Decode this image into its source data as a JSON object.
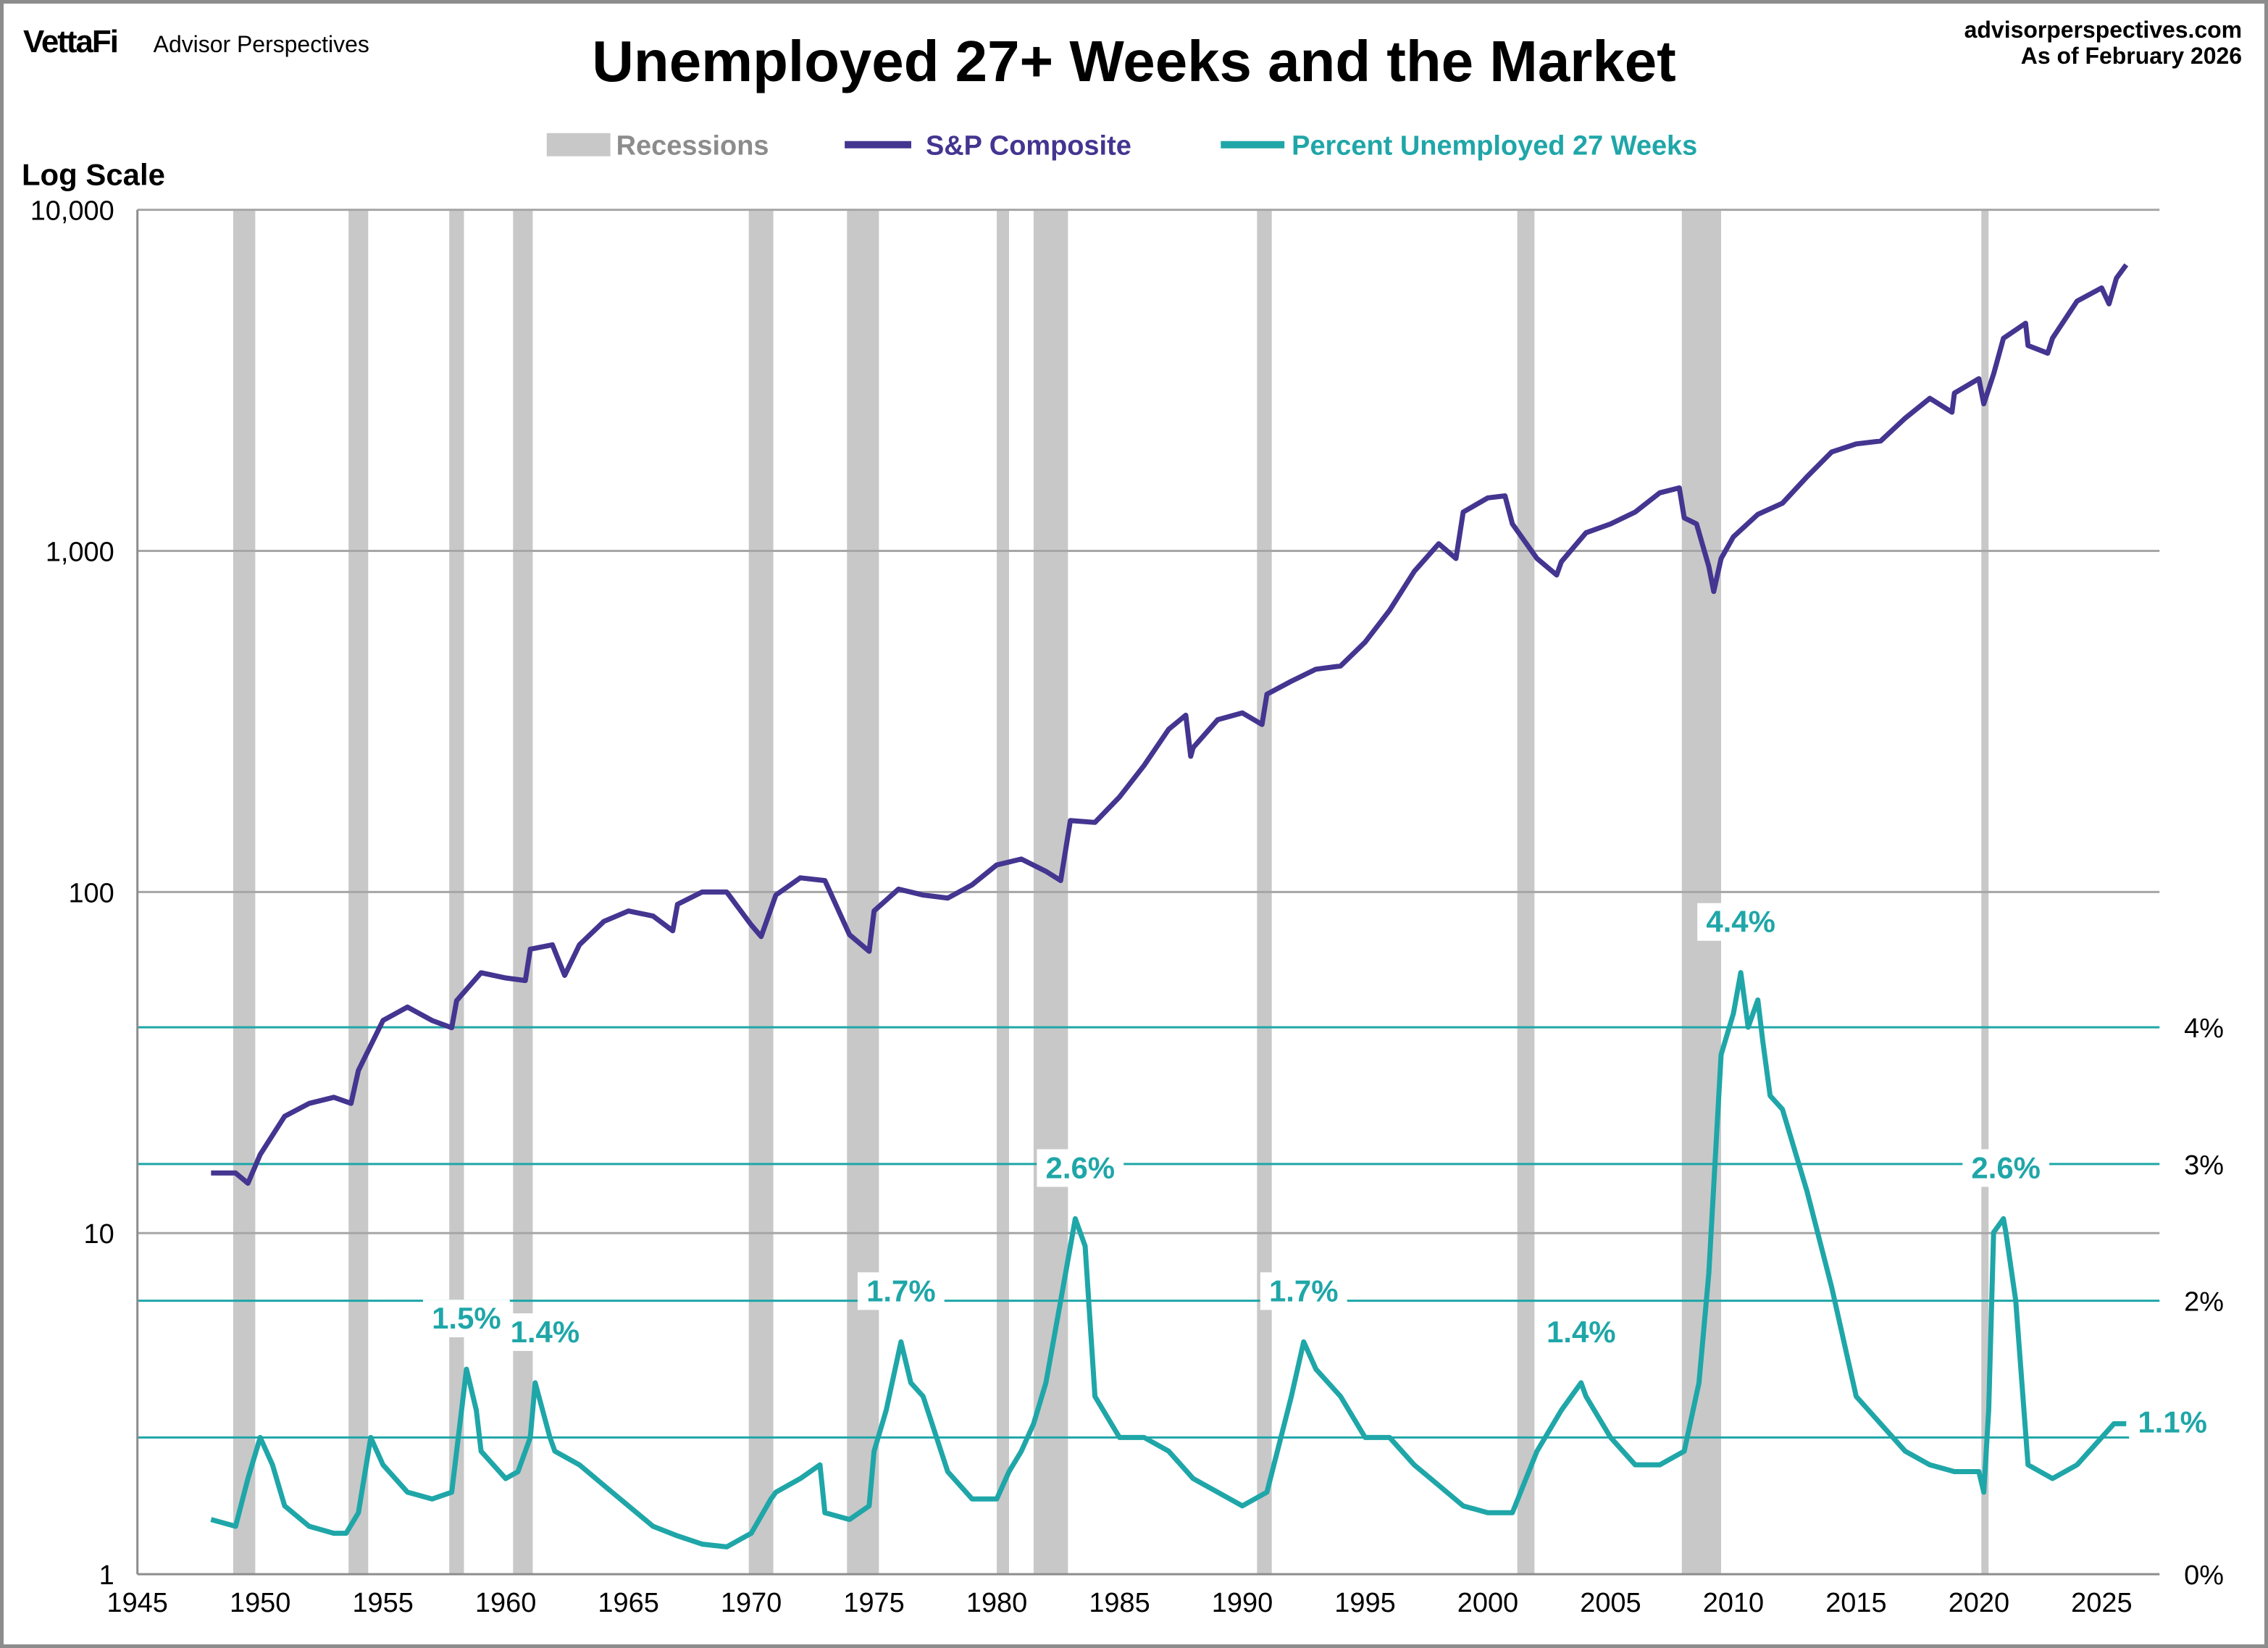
{
  "header": {
    "brand": "VettaFi",
    "brand_sub": "Advisor Perspectives",
    "site": "advisorperspectives.com",
    "as_of": "As of February 2026"
  },
  "chart_data": {
    "type": "line",
    "title": "Unemployed 27+ Weeks and the Market",
    "left_axis_label": "Log Scale",
    "left_axis": {
      "scale": "log",
      "range": [
        1,
        10000
      ],
      "ticks": [
        "1",
        "10",
        "100",
        "1,000",
        "10,000"
      ]
    },
    "right_axis": {
      "range": [
        0,
        5
      ],
      "ticks": [
        "0%",
        "2%",
        "3%",
        "4%"
      ],
      "gridlines_at": [
        1,
        2,
        3,
        4
      ]
    },
    "x_axis": {
      "range": [
        1945,
        2027
      ],
      "ticks": [
        "1945",
        "1950",
        "1955",
        "1960",
        "1965",
        "1970",
        "1975",
        "1980",
        "1985",
        "1990",
        "1995",
        "2000",
        "2005",
        "2010",
        "2015",
        "2020",
        "2025"
      ]
    },
    "legend": {
      "position": "top",
      "items": [
        "Recessions",
        "S&P Composite",
        "Percent Unemployed 27 Weeks"
      ]
    },
    "colors": {
      "recession": "#c8c8c8",
      "sp": "#433590",
      "unemp": "#1fa6a8",
      "grid": "#a6a6a6"
    },
    "recessions": [
      [
        1948.9,
        1949.8
      ],
      [
        1953.6,
        1954.4
      ],
      [
        1957.7,
        1958.3
      ],
      [
        1960.3,
        1961.1
      ],
      [
        1969.9,
        1970.9
      ],
      [
        1973.9,
        1975.2
      ],
      [
        1980.0,
        1980.5
      ],
      [
        1981.5,
        1982.9
      ],
      [
        1990.6,
        1991.2
      ],
      [
        2001.2,
        2001.9
      ],
      [
        2007.9,
        2009.5
      ],
      [
        2020.1,
        2020.3
      ]
    ],
    "series": [
      {
        "name": "S&P Composite",
        "axis": "left",
        "x": [
          1948,
          1949,
          1949.5,
          1950,
          1951,
          1952,
          1953,
          1953.7,
          1954,
          1955,
          1956,
          1957,
          1957.8,
          1958,
          1959,
          1960,
          1960.8,
          1961,
          1961.9,
          1962.4,
          1963,
          1964,
          1965,
          1966,
          1966.8,
          1967,
          1968,
          1969,
          1970,
          1970.4,
          1971,
          1972,
          1973,
          1974,
          1974.8,
          1975,
          1976,
          1977,
          1978,
          1979,
          1980,
          1981,
          1982,
          1982.6,
          1983,
          1984,
          1985,
          1986,
          1987,
          1987.7,
          1987.9,
          1988,
          1989,
          1990,
          1990.8,
          1991,
          1992,
          1993,
          1994,
          1995,
          1996,
          1997,
          1998,
          1998.7,
          1999,
          2000,
          2000.7,
          2001,
          2002,
          2002.8,
          2003,
          2004,
          2005,
          2006,
          2007,
          2007.8,
          2008,
          2008.5,
          2009,
          2009.2,
          2009.5,
          2010,
          2011,
          2012,
          2013,
          2014,
          2015,
          2016,
          2017,
          2018,
          2018.9,
          2019,
          2020,
          2020.2,
          2020.6,
          2021,
          2021.9,
          2022,
          2022.8,
          2023,
          2024,
          2025,
          2025.3,
          2025.6,
          2026
        ],
        "y": [
          15,
          15,
          14,
          17,
          22,
          24,
          25,
          24,
          30,
          42,
          46,
          42,
          40,
          48,
          58,
          56,
          55,
          68,
          70,
          57,
          70,
          82,
          88,
          85,
          77,
          92,
          100,
          100,
          80,
          74,
          98,
          110,
          108,
          75,
          67,
          88,
          102,
          98,
          96,
          105,
          120,
          125,
          115,
          108,
          162,
          160,
          190,
          235,
          300,
          330,
          250,
          265,
          320,
          335,
          310,
          380,
          415,
          450,
          460,
          540,
          670,
          870,
          1050,
          950,
          1300,
          1430,
          1450,
          1200,
          950,
          850,
          930,
          1130,
          1200,
          1300,
          1480,
          1530,
          1250,
          1200,
          900,
          760,
          950,
          1100,
          1280,
          1380,
          1650,
          1950,
          2060,
          2100,
          2450,
          2800,
          2550,
          2900,
          3200,
          2700,
          3300,
          4200,
          4650,
          4000,
          3800,
          4200,
          5400,
          5900,
          5300,
          6300,
          6900
        ]
      },
      {
        "name": "Percent Unemployed 27 Weeks",
        "axis": "right",
        "x": [
          1948,
          1949,
          1949.5,
          1950,
          1950.5,
          1951,
          1952,
          1953,
          1953.5,
          1954,
          1954.5,
          1955,
          1956,
          1957,
          1957.8,
          1958,
          1958.4,
          1958.8,
          1959,
          1960,
          1960.5,
          1961,
          1961.2,
          1961.8,
          1962,
          1963,
          1964,
          1965,
          1966,
          1967,
          1968,
          1969,
          1970,
          1970.8,
          1971,
          1972,
          1972.8,
          1973,
          1974,
          1974.8,
          1975,
          1975.5,
          1976.1,
          1976.5,
          1977,
          1978,
          1979,
          1980,
          1980.5,
          1981,
          1981.5,
          1982,
          1982.6,
          1983.2,
          1983.6,
          1984,
          1985,
          1986,
          1987,
          1988,
          1989,
          1990,
          1991,
          1992,
          1992.5,
          1993,
          1994,
          1995,
          1996,
          1997,
          1998,
          1999,
          2000,
          2001,
          2002,
          2003,
          2003.8,
          2004,
          2005,
          2006,
          2007,
          2008,
          2008.6,
          2009,
          2009.5,
          2010,
          2010.3,
          2010.6,
          2011,
          2011.2,
          2011.5,
          2012,
          2013,
          2014,
          2015,
          2016,
          2017,
          2018,
          2019,
          2020,
          2020.2,
          2020.4,
          2020.6,
          2021,
          2021.1,
          2021.5,
          2022,
          2023,
          2024,
          2025,
          2025.5,
          2026
        ],
        "y": [
          0.4,
          0.35,
          0.7,
          1.0,
          0.8,
          0.5,
          0.35,
          0.3,
          0.3,
          0.45,
          1.0,
          0.8,
          0.6,
          0.55,
          0.6,
          0.9,
          1.5,
          1.2,
          0.9,
          0.7,
          0.75,
          1.0,
          1.4,
          1.0,
          0.9,
          0.8,
          0.65,
          0.5,
          0.35,
          0.28,
          0.22,
          0.2,
          0.3,
          0.55,
          0.6,
          0.7,
          0.8,
          0.45,
          0.4,
          0.5,
          0.9,
          1.2,
          1.7,
          1.4,
          1.3,
          0.75,
          0.55,
          0.55,
          0.75,
          0.9,
          1.1,
          1.4,
          2.0,
          2.6,
          2.4,
          1.3,
          1.0,
          1.0,
          0.9,
          0.7,
          0.6,
          0.5,
          0.6,
          1.3,
          1.7,
          1.5,
          1.3,
          1.0,
          1.0,
          0.8,
          0.65,
          0.5,
          0.45,
          0.45,
          0.9,
          1.2,
          1.4,
          1.3,
          1.0,
          0.8,
          0.8,
          0.9,
          1.4,
          2.2,
          3.8,
          4.1,
          4.4,
          4.0,
          4.2,
          3.9,
          3.5,
          3.4,
          2.8,
          2.1,
          1.3,
          1.1,
          0.9,
          0.8,
          0.75,
          0.75,
          0.6,
          1.2,
          2.5,
          2.6,
          2.5,
          2.0,
          0.8,
          0.7,
          0.8,
          1.0,
          1.1,
          1.1
        ]
      }
    ],
    "annotations": [
      {
        "x": 1958.4,
        "y": 1.5,
        "text": "1.5%"
      },
      {
        "x": 1961.6,
        "y": 1.4,
        "text": "1.4%"
      },
      {
        "x": 1976.1,
        "y": 1.7,
        "text": "1.7%"
      },
      {
        "x": 1983.4,
        "y": 2.6,
        "text": "2.6%"
      },
      {
        "x": 1992.5,
        "y": 1.7,
        "text": "1.7%"
      },
      {
        "x": 2003.8,
        "y": 1.4,
        "text": "1.4%"
      },
      {
        "x": 2010.3,
        "y": 4.4,
        "text": "4.4%"
      },
      {
        "x": 2021.1,
        "y": 2.6,
        "text": "2.6%"
      },
      {
        "x": 2026,
        "y": 1.1,
        "text": "1.1%"
      }
    ]
  }
}
